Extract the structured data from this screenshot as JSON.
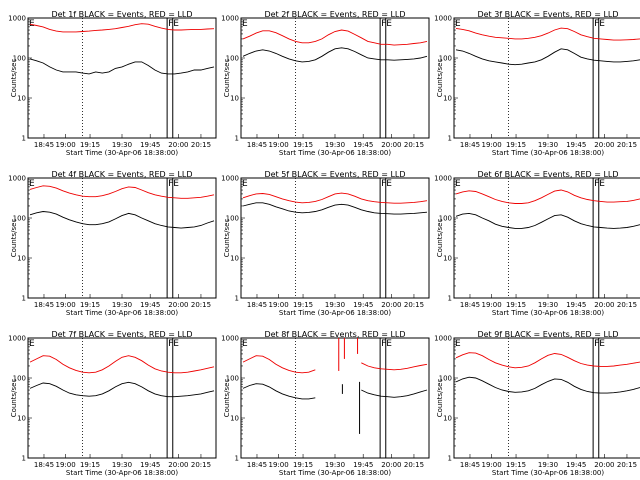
{
  "colors": {
    "events": "#000000",
    "lld": "#ee0000",
    "axes": "#000000",
    "background": "#ffffff"
  },
  "chart_data": [
    {
      "type": "line",
      "title": "Det 1f BLACK = Events, RED = LLD",
      "xlabel": "Start Time (30-Apr-06 18:38:00)",
      "ylabel": "Counts/sec",
      "yscale": "log",
      "ylim": [
        1,
        1000
      ],
      "x_tick_labels": [
        "18:45",
        "19:00",
        "19:15",
        "19:30",
        "19:45",
        "20:00",
        "20:15"
      ],
      "y_tick_labels": [
        "1",
        "10",
        "100",
        "1000"
      ],
      "markers": [
        {
          "label": "E"
        },
        {
          "label": "FE"
        }
      ],
      "series": [
        {
          "name": "Events",
          "color": "#000000",
          "values": [
            95,
            85,
            75,
            60,
            50,
            45,
            45,
            45,
            42,
            40,
            45,
            42,
            45,
            55,
            60,
            70,
            80,
            80,
            65,
            50,
            42,
            40,
            40,
            42,
            45,
            50,
            50,
            55,
            60
          ]
        },
        {
          "name": "LLD",
          "color": "#ee0000",
          "values": [
            700,
            650,
            600,
            520,
            470,
            450,
            450,
            450,
            460,
            470,
            490,
            500,
            520,
            540,
            580,
            620,
            680,
            720,
            700,
            620,
            560,
            520,
            500,
            500,
            510,
            520,
            520,
            530,
            540
          ]
        }
      ]
    },
    {
      "type": "line",
      "title": "Det 2f BLACK = Events, RED = LLD",
      "xlabel": "Start Time (30-Apr-06 18:38:00)",
      "ylabel": "Counts/sec",
      "yscale": "log",
      "ylim": [
        1,
        1000
      ],
      "x_tick_labels": [
        "18:45",
        "19:00",
        "19:15",
        "19:30",
        "19:45",
        "20:00",
        "20:15"
      ],
      "y_tick_labels": [
        "1",
        "10",
        "100",
        "1000"
      ],
      "markers": [
        {
          "label": "E"
        },
        {
          "label": "FE"
        }
      ],
      "series": [
        {
          "name": "Events",
          "color": "#000000",
          "values": [
            110,
            130,
            150,
            160,
            150,
            130,
            110,
            95,
            85,
            80,
            82,
            90,
            110,
            140,
            170,
            180,
            170,
            145,
            120,
            100,
            95,
            90,
            90,
            88,
            90,
            92,
            95,
            100,
            110
          ]
        },
        {
          "name": "LLD",
          "color": "#ee0000",
          "values": [
            300,
            350,
            420,
            480,
            480,
            430,
            360,
            300,
            260,
            240,
            240,
            260,
            300,
            380,
            460,
            500,
            470,
            390,
            320,
            260,
            240,
            220,
            220,
            210,
            215,
            220,
            230,
            240,
            260
          ]
        }
      ]
    },
    {
      "type": "line",
      "title": "Det 3f BLACK = Events, RED = LLD",
      "xlabel": "Start Time (30-Apr-06 18:38:00)",
      "ylabel": "Counts/sec",
      "yscale": "log",
      "ylim": [
        1,
        1000
      ],
      "x_tick_labels": [
        "18:45",
        "19:00",
        "19:15",
        "19:30",
        "19:45",
        "20:00",
        "20:15"
      ],
      "y_tick_labels": [
        "1",
        "10",
        "100",
        "1000"
      ],
      "markers": [
        {
          "label": "E"
        },
        {
          "label": "FE"
        }
      ],
      "series": [
        {
          "name": "Events",
          "color": "#000000",
          "values": [
            160,
            150,
            130,
            110,
            95,
            85,
            80,
            75,
            70,
            68,
            70,
            75,
            80,
            90,
            110,
            140,
            170,
            160,
            130,
            105,
            95,
            88,
            85,
            82,
            80,
            80,
            82,
            85,
            90
          ]
        },
        {
          "name": "LLD",
          "color": "#ee0000",
          "values": [
            550,
            520,
            480,
            420,
            380,
            350,
            330,
            320,
            310,
            300,
            300,
            310,
            330,
            360,
            420,
            500,
            560,
            540,
            460,
            380,
            340,
            310,
            300,
            290,
            280,
            280,
            285,
            290,
            300
          ]
        }
      ]
    },
    {
      "type": "line",
      "title": "Det 4f BLACK = Events, RED = LLD",
      "xlabel": "Start Time (30-Apr-06 18:38:00)",
      "ylabel": "Counts/sec",
      "yscale": "log",
      "ylim": [
        1,
        1000
      ],
      "x_tick_labels": [
        "18:45",
        "19:00",
        "19:15",
        "19:30",
        "19:45",
        "20:00",
        "20:15"
      ],
      "y_tick_labels": [
        "1",
        "10",
        "100",
        "1000"
      ],
      "markers": [
        {
          "label": "E"
        },
        {
          "label": "FE"
        }
      ],
      "series": [
        {
          "name": "Events",
          "color": "#000000",
          "values": [
            120,
            135,
            145,
            140,
            125,
            105,
            90,
            80,
            72,
            68,
            68,
            72,
            80,
            95,
            115,
            130,
            120,
            100,
            85,
            72,
            65,
            60,
            58,
            56,
            58,
            60,
            65,
            75,
            85
          ]
        },
        {
          "name": "LLD",
          "color": "#ee0000",
          "values": [
            520,
            580,
            640,
            620,
            560,
            480,
            420,
            380,
            350,
            340,
            340,
            360,
            400,
            460,
            540,
            600,
            580,
            500,
            430,
            380,
            350,
            330,
            320,
            310,
            310,
            320,
            330,
            350,
            380
          ]
        }
      ]
    },
    {
      "type": "line",
      "title": "Det 5f BLACK = Events, RED = LLD",
      "xlabel": "Start Time (30-Apr-06 18:38:00)",
      "ylabel": "Counts/sec",
      "yscale": "log",
      "ylim": [
        1,
        1000
      ],
      "x_tick_labels": [
        "18:45",
        "19:00",
        "19:15",
        "19:30",
        "19:45",
        "20:00",
        "20:15"
      ],
      "y_tick_labels": [
        "1",
        "10",
        "100",
        "1000"
      ],
      "markers": [
        {
          "label": "E"
        },
        {
          "label": "FE"
        }
      ],
      "series": [
        {
          "name": "Events",
          "color": "#000000",
          "values": [
            200,
            220,
            240,
            240,
            220,
            190,
            170,
            150,
            140,
            135,
            138,
            145,
            160,
            185,
            210,
            220,
            210,
            185,
            160,
            145,
            135,
            130,
            128,
            125,
            125,
            128,
            130,
            135,
            140
          ]
        },
        {
          "name": "LLD",
          "color": "#ee0000",
          "values": [
            320,
            360,
            400,
            410,
            390,
            340,
            300,
            270,
            250,
            240,
            245,
            260,
            290,
            340,
            400,
            420,
            400,
            350,
            300,
            270,
            255,
            245,
            240,
            235,
            235,
            240,
            245,
            255,
            270
          ]
        }
      ]
    },
    {
      "type": "line",
      "title": "Det 6f BLACK = Events, RED = LLD",
      "xlabel": "Start Time (30-Apr-06 18:38:00)",
      "ylabel": "Counts/sec",
      "yscale": "log",
      "ylim": [
        1,
        1000
      ],
      "x_tick_labels": [
        "18:45",
        "19:00",
        "19:15",
        "19:30",
        "19:45",
        "20:00",
        "20:15"
      ],
      "y_tick_labels": [
        "1",
        "10",
        "100",
        "1000"
      ],
      "markers": [
        {
          "label": "E"
        },
        {
          "label": "FE"
        }
      ],
      "series": [
        {
          "name": "Events",
          "color": "#000000",
          "values": [
            110,
            125,
            130,
            120,
            100,
            85,
            70,
            62,
            58,
            55,
            55,
            58,
            65,
            78,
            95,
            115,
            120,
            105,
            85,
            72,
            65,
            60,
            58,
            56,
            55,
            56,
            58,
            62,
            68
          ]
        },
        {
          "name": "LLD",
          "color": "#ee0000",
          "values": [
            400,
            450,
            480,
            460,
            400,
            340,
            290,
            260,
            240,
            230,
            230,
            240,
            270,
            320,
            390,
            470,
            500,
            450,
            370,
            320,
            290,
            270,
            260,
            250,
            250,
            255,
            260,
            275,
            300
          ]
        }
      ]
    },
    {
      "type": "line",
      "title": "Det 7f BLACK = Events, RED = LLD",
      "xlabel": "Start Time (30-Apr-06 18:38:00)",
      "ylabel": "Counts/sec",
      "yscale": "log",
      "ylim": [
        1,
        1000
      ],
      "x_tick_labels": [
        "18:45",
        "19:00",
        "19:15",
        "19:30",
        "19:45",
        "20:00",
        "20:15"
      ],
      "y_tick_labels": [
        "1",
        "10",
        "100",
        "1000"
      ],
      "markers": [
        {
          "label": "E"
        },
        {
          "label": "FE"
        }
      ],
      "series": [
        {
          "name": "Events",
          "color": "#000000",
          "values": [
            55,
            65,
            75,
            72,
            62,
            50,
            42,
            38,
            36,
            35,
            36,
            40,
            48,
            60,
            72,
            78,
            72,
            60,
            48,
            40,
            36,
            34,
            34,
            35,
            36,
            38,
            40,
            44,
            48
          ]
        },
        {
          "name": "LLD",
          "color": "#ee0000",
          "values": [
            250,
            300,
            360,
            350,
            290,
            220,
            180,
            155,
            140,
            135,
            140,
            160,
            200,
            260,
            330,
            360,
            330,
            270,
            210,
            170,
            150,
            140,
            135,
            135,
            140,
            150,
            160,
            175,
            190
          ]
        }
      ]
    },
    {
      "type": "line",
      "title": "Det 8f BLACK = Events, RED = LLD",
      "xlabel": "Start Time (30-Apr-06 18:38:00)",
      "ylabel": "Counts/sec",
      "yscale": "log",
      "ylim": [
        1,
        1000
      ],
      "x_tick_labels": [
        "18:45",
        "19:00",
        "19:15",
        "19:30",
        "19:45",
        "20:00",
        "20:15"
      ],
      "y_tick_labels": [
        "1",
        "10",
        "100",
        "1000"
      ],
      "markers": [
        {
          "label": "E"
        },
        {
          "label": "FE"
        }
      ],
      "series": [
        {
          "name": "Events",
          "color": "#000000",
          "values": [
            55,
            65,
            72,
            70,
            60,
            48,
            40,
            35,
            32,
            30,
            30,
            32,
            null,
            null,
            null,
            null,
            null,
            null,
            50,
            42,
            38,
            35,
            34,
            33,
            34,
            36,
            40,
            45,
            50
          ]
        },
        {
          "name": "LLD",
          "color": "#ee0000",
          "values": [
            250,
            300,
            360,
            350,
            290,
            220,
            180,
            155,
            140,
            135,
            140,
            160,
            null,
            null,
            null,
            null,
            null,
            null,
            240,
            200,
            180,
            170,
            165,
            160,
            165,
            175,
            190,
            205,
            220
          ]
        }
      ]
    },
    {
      "type": "line",
      "title": "Det 9f BLACK = Events, RED = LLD",
      "xlabel": "Start Time (30-Apr-06 18:38:00)",
      "ylabel": "Counts/sec",
      "yscale": "log",
      "ylim": [
        1,
        1000
      ],
      "x_tick_labels": [
        "18:45",
        "19:00",
        "19:15",
        "19:30",
        "19:45",
        "20:00",
        "20:15"
      ],
      "y_tick_labels": [
        "1",
        "10",
        "100",
        "1000"
      ],
      "markers": [
        {
          "label": "E"
        },
        {
          "label": "FE"
        }
      ],
      "series": [
        {
          "name": "Events",
          "color": "#000000",
          "values": [
            80,
            95,
            105,
            100,
            85,
            70,
            58,
            50,
            46,
            44,
            45,
            48,
            55,
            68,
            82,
            95,
            92,
            78,
            62,
            52,
            46,
            43,
            42,
            42,
            43,
            45,
            48,
            52,
            58
          ]
        },
        {
          "name": "LLD",
          "color": "#ee0000",
          "values": [
            320,
            380,
            430,
            420,
            360,
            290,
            240,
            210,
            190,
            180,
            185,
            200,
            240,
            300,
            370,
            410,
            390,
            330,
            270,
            230,
            210,
            200,
            195,
            195,
            200,
            210,
            220,
            235,
            250
          ]
        }
      ]
    }
  ]
}
